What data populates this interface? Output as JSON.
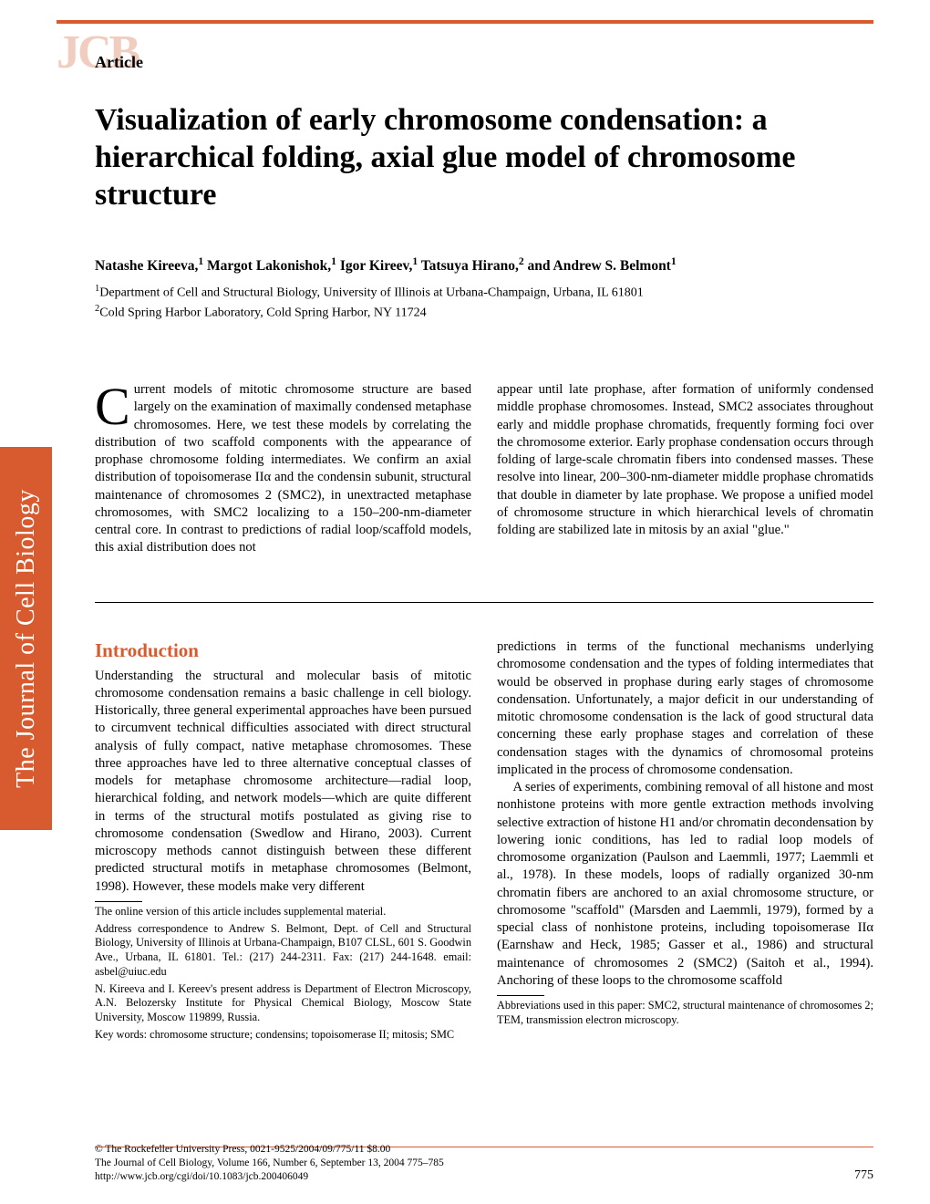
{
  "colors": {
    "accent": "#d85a2f",
    "logo_tint": "#f0cdbf",
    "text": "#000000",
    "background": "#ffffff",
    "side_tab_bg": "#d85a2f",
    "side_tab_text": "#ffffff"
  },
  "logo": {
    "text": "JCB",
    "article_label": "Article"
  },
  "title": "Visualization of early chromosome condensation: a hierarchical folding, axial glue model of chromosome structure",
  "authors_html": "Natashe Kireeva,<sup>1</sup> Margot Lakonishok,<sup>1</sup> Igor Kireev,<sup>1</sup> Tatsuya Hirano,<sup>2</sup> and Andrew S. Belmont<sup>1</sup>",
  "affiliations_html": "<sup>1</sup>Department of Cell and Structural Biology, University of Illinois at Urbana-Champaign, Urbana, IL 61801<br><sup>2</sup>Cold Spring Harbor Laboratory, Cold Spring Harbor, NY 11724",
  "abstract": {
    "dropcap": "C",
    "col1": "urrent models of mitotic chromosome structure are based largely on the examination of maximally condensed metaphase chromosomes. Here, we test these models by correlating the distribution of two scaffold components with the appearance of prophase chromosome folding intermediates. We confirm an axial distribution of topoisomerase IIα and the condensin subunit, structural maintenance of chromosomes 2 (SMC2), in unextracted metaphase chromosomes, with SMC2 localizing to a 150–200-nm-diameter central core. In contrast to predictions of radial loop/scaffold models, this axial distribution does not",
    "col2": "appear until late prophase, after formation of uniformly condensed middle prophase chromosomes. Instead, SMC2 associates throughout early and middle prophase chromatids, frequently forming foci over the chromosome exterior. Early prophase condensation occurs through folding of large-scale chromatin fibers into condensed masses. These resolve into linear, 200–300-nm-diameter middle prophase chromatids that double in diameter by late prophase. We propose a unified model of chromosome structure in which hierarchical levels of chromatin folding are stabilized late in mitosis by an axial \"glue.\""
  },
  "intro": {
    "heading": "Introduction",
    "col1_main": "Understanding the structural and molecular basis of mitotic chromosome condensation remains a basic challenge in cell biology. Historically, three general experimental approaches have been pursued to circumvent technical difficulties associated with direct structural analysis of fully compact, native metaphase chromosomes. These three approaches have led to three alternative conceptual classes of models for metaphase chromosome architecture—radial loop, hierarchical folding, and network models—which are quite different in terms of the structural motifs postulated as giving rise to chromosome condensation (Swedlow and Hirano, 2003). Current microscopy methods cannot distinguish between these different predicted structural motifs in metaphase chromosomes (Belmont, 1998). However, these models make very different",
    "col1_footnotes": [
      "The online version of this article includes supplemental material.",
      "Address correspondence to Andrew S. Belmont, Dept. of Cell and Structural Biology, University of Illinois at Urbana-Champaign, B107 CLSL, 601 S. Goodwin Ave., Urbana, IL 61801. Tel.: (217) 244-2311. Fax: (217) 244-1648. email: asbel@uiuc.edu",
      "N. Kireeva and I. Kereev's present address is Department of Electron Microscopy, A.N. Belozersky Institute for Physical Chemical Biology, Moscow State University, Moscow 119899, Russia.",
      "Key words: chromosome structure; condensins; topoisomerase II; mitosis; SMC"
    ],
    "col2_para1": "predictions in terms of the functional mechanisms underlying chromosome condensation and the types of folding intermediates that would be observed in prophase during early stages of chromosome condensation. Unfortunately, a major deficit in our understanding of mitotic chromosome condensation is the lack of good structural data concerning these early prophase stages and correlation of these condensation stages with the dynamics of chromosomal proteins implicated in the process of chromosome condensation.",
    "col2_para2": "A series of experiments, combining removal of all histone and most nonhistone proteins with more gentle extraction methods involving selective extraction of histone H1 and/or chromatin decondensation by lowering ionic conditions, has led to radial loop models of chromosome organization (Paulson and Laemmli, 1977; Laemmli et al., 1978). In these models, loops of radially organized 30-nm chromatin fibers are anchored to an axial chromosome structure, or chromosome \"scaffold\" (Marsden and Laemmli, 1979), formed by a special class of nonhistone proteins, including topoisomerase IIα (Earnshaw and Heck, 1985; Gasser et al., 1986) and structural maintenance of chromosomes 2 (SMC2) (Saitoh et al., 1994). Anchoring of these loops to the chromosome scaffold",
    "col2_footnote": "Abbreviations used in this paper: SMC2, structural maintenance of chromosomes 2; TEM, transmission electron microscopy."
  },
  "side_tab": "The Journal of Cell Biology",
  "bottom": {
    "copyright": "© The Rockefeller University Press, 0021-9525/2004/09/775/11 $8.00",
    "citation": "The Journal of Cell Biology, Volume 166, Number 6, September 13, 2004 775–785",
    "url": "http://www.jcb.org/cgi/doi/10.1083/jcb.200406049",
    "page": "775"
  }
}
